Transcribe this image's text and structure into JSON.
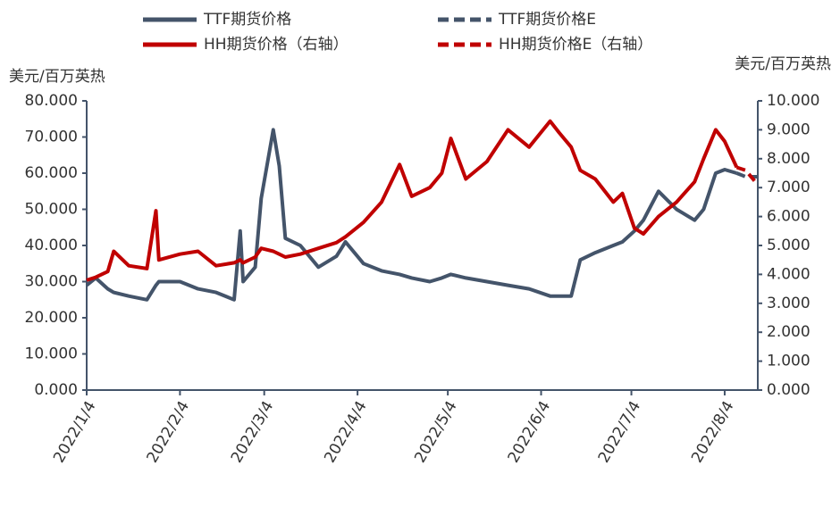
{
  "chart_data": {
    "type": "line",
    "y_label": "美元/百万英热",
    "y2_label": "美元/百万英热",
    "x": [
      "2022/1/4",
      "2022/1/7",
      "2022/1/11",
      "2022/1/13",
      "2022/1/18",
      "2022/1/24",
      "2022/1/27",
      "2022/1/28",
      "2022/2/4",
      "2022/2/10",
      "2022/2/16",
      "2022/2/22",
      "2022/2/24",
      "2022/2/25",
      "2022/3/1",
      "2022/3/3",
      "2022/3/7",
      "2022/3/9",
      "2022/3/11",
      "2022/3/16",
      "2022/3/22",
      "2022/3/28",
      "2022/3/31",
      "2022/4/6",
      "2022/4/12",
      "2022/4/18",
      "2022/4/22",
      "2022/4/28",
      "2022/5/2",
      "2022/5/5",
      "2022/5/10",
      "2022/5/17",
      "2022/5/24",
      "2022/5/31",
      "2022/6/7",
      "2022/6/10",
      "2022/6/14",
      "2022/6/17",
      "2022/6/22",
      "2022/6/28",
      "2022/7/1",
      "2022/7/5",
      "2022/7/8",
      "2022/7/13",
      "2022/7/19",
      "2022/7/25",
      "2022/7/28",
      "2022/8/1",
      "2022/8/4",
      "2022/8/8",
      "2022/8/11",
      "2022/8/15"
    ],
    "xlim": [
      "2022/1/4",
      "2022/8/15"
    ],
    "xticks": [
      "2022/1/4",
      "2022/2/4",
      "2022/3/4",
      "2022/4/4",
      "2022/5/4",
      "2022/6/4",
      "2022/7/4",
      "2022/8/4"
    ],
    "series": [
      {
        "name": "TTF期货价格",
        "color": "#44546a",
        "dash": false,
        "values": [
          29,
          31,
          28,
          27,
          26,
          25,
          29,
          30,
          30,
          28,
          27,
          25,
          44,
          30,
          34,
          53,
          72,
          62,
          42,
          40,
          34,
          37,
          41,
          35,
          33,
          32,
          31,
          30,
          31,
          32,
          31,
          30,
          29,
          28,
          26,
          26,
          26,
          36,
          38,
          40,
          41,
          44,
          47,
          55,
          50,
          47,
          50,
          60,
          61,
          60,
          null,
          null
        ]
      },
      {
        "name": "TTF期货价格E",
        "color": "#44546a",
        "dash": true,
        "values": [
          null,
          null,
          null,
          null,
          null,
          null,
          null,
          null,
          null,
          null,
          null,
          null,
          null,
          null,
          null,
          null,
          null,
          null,
          null,
          null,
          null,
          null,
          null,
          null,
          null,
          null,
          null,
          null,
          null,
          null,
          null,
          null,
          null,
          null,
          null,
          null,
          null,
          null,
          null,
          null,
          null,
          null,
          null,
          null,
          null,
          null,
          null,
          null,
          null,
          60,
          59,
          59
        ]
      },
      {
        "name": "HH期货价格（右轴）",
        "color": "#c00000",
        "dash": false,
        "axis": "y2",
        "values": [
          3.8,
          3.9,
          4.1,
          4.8,
          4.3,
          4.2,
          6.2,
          4.5,
          4.7,
          4.8,
          4.3,
          4.4,
          4.5,
          4.4,
          4.6,
          4.9,
          4.8,
          4.7,
          4.6,
          4.7,
          4.9,
          5.1,
          5.3,
          5.8,
          6.5,
          7.8,
          6.7,
          7.0,
          7.5,
          8.7,
          7.3,
          7.9,
          9.0,
          8.4,
          9.3,
          8.9,
          8.4,
          7.6,
          7.3,
          6.5,
          6.8,
          5.6,
          5.4,
          6.0,
          6.5,
          7.2,
          8.0,
          9.0,
          8.6,
          7.7,
          null,
          null
        ]
      },
      {
        "name": "HH期货价格E（右轴）",
        "color": "#c00000",
        "dash": true,
        "axis": "y2",
        "values": [
          null,
          null,
          null,
          null,
          null,
          null,
          null,
          null,
          null,
          null,
          null,
          null,
          null,
          null,
          null,
          null,
          null,
          null,
          null,
          null,
          null,
          null,
          null,
          null,
          null,
          null,
          null,
          null,
          null,
          null,
          null,
          null,
          null,
          null,
          null,
          null,
          null,
          null,
          null,
          null,
          null,
          null,
          null,
          null,
          null,
          null,
          null,
          null,
          null,
          7.7,
          7.6,
          7.1
        ]
      }
    ],
    "ylim": [
      0,
      80
    ],
    "yticks": [
      {
        "value": 0,
        "label": "0.000"
      },
      {
        "value": 10,
        "label": "10.000"
      },
      {
        "value": 20,
        "label": "20.000"
      },
      {
        "value": 30,
        "label": "30.000"
      },
      {
        "value": 40,
        "label": "40.000"
      },
      {
        "value": 50,
        "label": "50.000"
      },
      {
        "value": 60,
        "label": "60.000"
      },
      {
        "value": 70,
        "label": "70.000"
      },
      {
        "value": 80,
        "label": "80.000"
      }
    ],
    "y2lim": [
      0,
      10
    ],
    "y2ticks": [
      {
        "value": 0,
        "label": "0.000"
      },
      {
        "value": 1,
        "label": "1.000"
      },
      {
        "value": 2,
        "label": "2.000"
      },
      {
        "value": 3,
        "label": "3.000"
      },
      {
        "value": 4,
        "label": "4.000"
      },
      {
        "value": 5,
        "label": "5.000"
      },
      {
        "value": 6,
        "label": "6.000"
      },
      {
        "value": 7,
        "label": "7.000"
      },
      {
        "value": 8,
        "label": "8.000"
      },
      {
        "value": 9,
        "label": "9.000"
      },
      {
        "value": 10,
        "label": "10.000"
      }
    ],
    "legend": "top",
    "grid": false
  }
}
